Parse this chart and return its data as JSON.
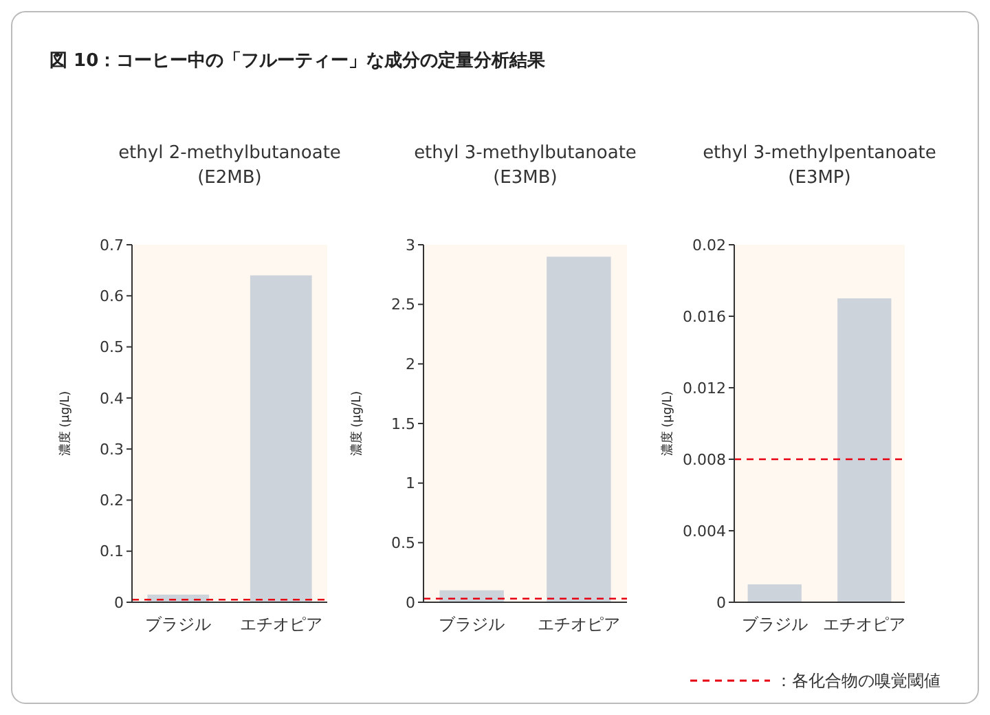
{
  "chart_data": [
    {
      "type": "bar",
      "title": "ethyl 2-methylbutanoate\n(E2MB)",
      "annotations": [
        "図 10：コーヒー中の「フルーティー」な成分の定量分析結果"
      ],
      "ylabel": "濃度 (μg/L)",
      "categories": [
        "ブラジル",
        "エチオピア"
      ],
      "values": [
        0.015,
        0.64
      ],
      "color": "#cdd3db",
      "ylim": [
        0,
        0.7
      ],
      "yticks": [
        0,
        0.1,
        0.2,
        0.3,
        0.4,
        0.5,
        0.6,
        0.7
      ],
      "ref_lines": [
        {
          "axis": "y",
          "value": 0.005,
          "color": "#e60012",
          "line_style": "dashed"
        }
      ]
    },
    {
      "type": "bar",
      "title": "ethyl 3-methylbutanoate\n(E3MB)",
      "ylabel": "濃度 (μg/L)",
      "categories": [
        "ブラジル",
        "エチオピア"
      ],
      "values": [
        0.1,
        2.9
      ],
      "color": "#cdd3db",
      "ylim": [
        0,
        3
      ],
      "yticks": [
        0,
        0.5,
        1,
        1.5,
        2,
        2.5,
        3
      ],
      "ref_lines": [
        {
          "axis": "y",
          "value": 0.03,
          "color": "#e60012",
          "line_style": "dashed"
        }
      ]
    },
    {
      "type": "bar",
      "title": "ethyl 3-methylpentanoate\n(E3MP)",
      "ylabel": "濃度 (μg/L)",
      "categories": [
        "ブラジル",
        "エチオピア"
      ],
      "values": [
        0.001,
        0.017
      ],
      "color": "#cdd3db",
      "ylim": [
        0,
        0.02
      ],
      "yticks": [
        0,
        0.004,
        0.008,
        0.012,
        0.016,
        0.02
      ],
      "ref_lines": [
        {
          "axis": "y",
          "value": 0.008,
          "color": "#e60012",
          "line_style": "dashed",
          "label": "：各化合物の嗅覚閾値"
        }
      ]
    }
  ]
}
